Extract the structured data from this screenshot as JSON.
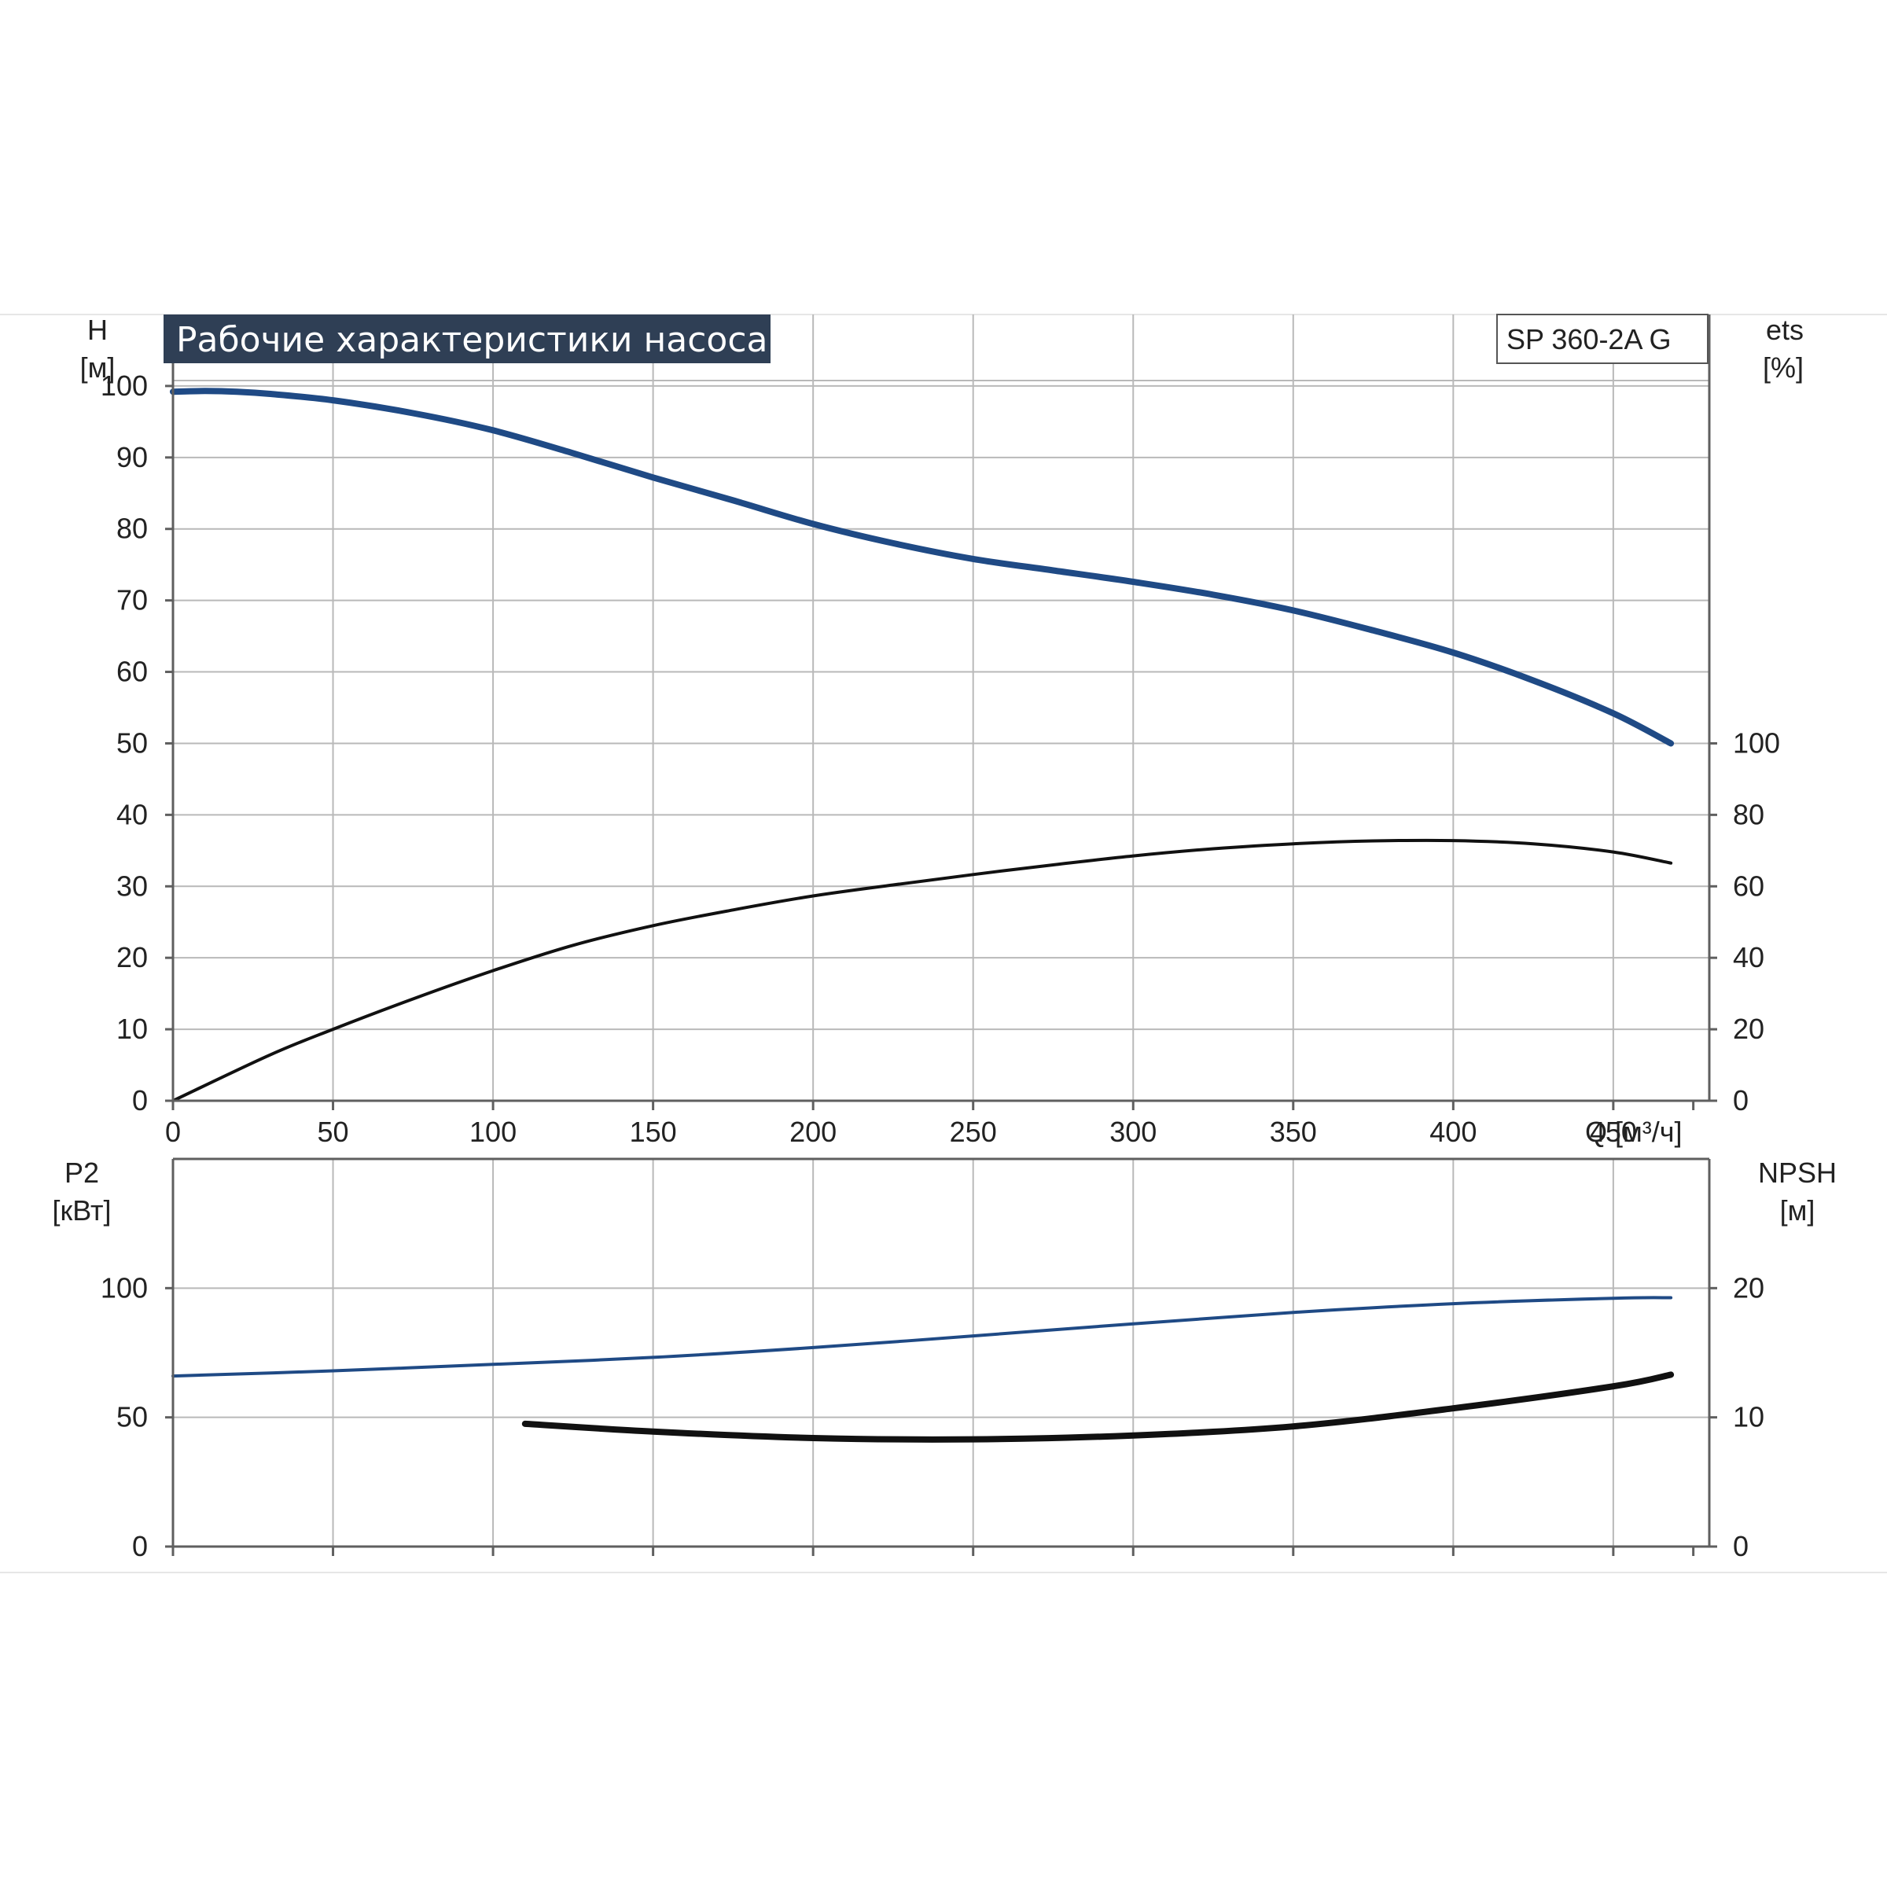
{
  "chart_data": [
    {
      "type": "line",
      "title": "Рабочие характеристики насоса",
      "model": "SP 360-2A G",
      "x_unit_label": "Q [м³/ч]",
      "x_ticks": [
        "0",
        "50",
        "100",
        "150",
        "200",
        "250",
        "300",
        "350",
        "400",
        "450"
      ],
      "xlim": [
        0,
        480
      ],
      "left_axis": {
        "name": "H",
        "unit": "[м]",
        "ylim": [
          0,
          110
        ],
        "ticks": [
          "0",
          "10",
          "20",
          "30",
          "40",
          "50",
          "60",
          "70",
          "80",
          "90",
          "100"
        ]
      },
      "right_axis": {
        "name": "ets",
        "unit": "[%]",
        "ylim": [
          0,
          220
        ],
        "ticks": [
          "0",
          "20",
          "40",
          "60",
          "80",
          "100"
        ]
      },
      "grid": true,
      "series": [
        {
          "axis": "left",
          "color": "#1f4a85",
          "x": [
            0,
            10,
            20,
            30,
            50,
            75,
            100,
            125,
            150,
            175,
            200,
            225,
            250,
            275,
            300,
            325,
            350,
            375,
            400,
            425,
            450,
            468
          ],
          "values": [
            99.2,
            99.3,
            99.2,
            98.9,
            98.0,
            96.2,
            93.8,
            90.6,
            87.2,
            84.0,
            80.7,
            78.0,
            75.8,
            74.2,
            72.6,
            70.8,
            68.6,
            65.8,
            62.7,
            58.8,
            54.2,
            50.0
          ]
        },
        {
          "axis": "right",
          "color": "#111111",
          "x": [
            0,
            30,
            50,
            75,
            100,
            125,
            150,
            175,
            200,
            225,
            250,
            275,
            300,
            325,
            350,
            375,
            400,
            425,
            450,
            468
          ],
          "values": [
            0,
            12.7,
            20.0,
            28.5,
            36.4,
            43.5,
            49.0,
            53.4,
            57.3,
            60.4,
            63.3,
            66.0,
            68.5,
            70.5,
            71.9,
            72.7,
            72.8,
            71.9,
            69.6,
            66.5
          ]
        }
      ]
    },
    {
      "type": "line",
      "x_ticks": [
        "0",
        "50",
        "100",
        "150",
        "200",
        "250",
        "300",
        "350",
        "400",
        "450"
      ],
      "xlim": [
        0,
        480
      ],
      "left_axis": {
        "name": "P2",
        "unit": "[кВт]",
        "ylim": [
          0,
          150
        ],
        "ticks": [
          "0",
          "50",
          "100"
        ]
      },
      "right_axis": {
        "name": "NPSH",
        "unit": "[м]",
        "ylim": [
          0,
          30
        ],
        "ticks": [
          "0",
          "10",
          "20"
        ]
      },
      "grid": true,
      "series": [
        {
          "axis": "left",
          "color": "#1f4a85",
          "x": [
            0,
            50,
            100,
            150,
            200,
            250,
            300,
            350,
            400,
            450,
            468
          ],
          "values": [
            66.0,
            68.0,
            70.5,
            73.2,
            77.0,
            81.5,
            86.2,
            90.6,
            94.0,
            96.1,
            96.3
          ]
        },
        {
          "axis": "right",
          "color": "#111111",
          "x": [
            110,
            150,
            200,
            250,
            300,
            350,
            400,
            450,
            468
          ],
          "values": [
            9.5,
            8.9,
            8.4,
            8.3,
            8.6,
            9.3,
            10.7,
            12.4,
            13.3
          ]
        }
      ]
    }
  ]
}
